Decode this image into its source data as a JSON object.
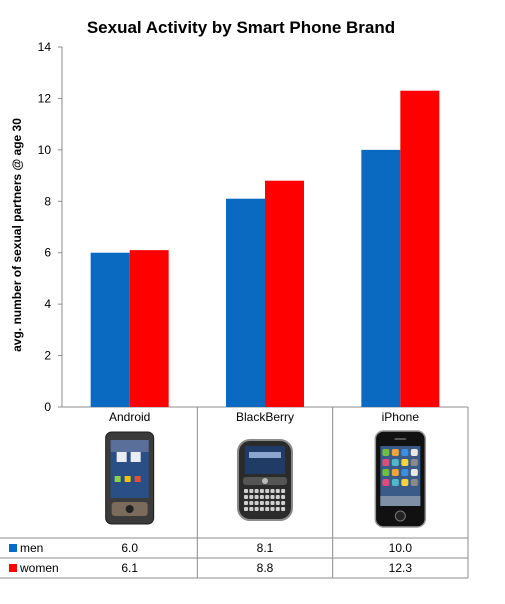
{
  "chart_data": {
    "type": "bar",
    "title": "Sexual Activity by Smart Phone Brand",
    "xlabel": "",
    "ylabel": "avg. number of sexual partners @ age 30",
    "ylim": [
      0,
      14
    ],
    "yticks": [
      0,
      2,
      4,
      6,
      8,
      10,
      12,
      14
    ],
    "grid": false,
    "legend": "data-table-below",
    "categories": [
      "Android",
      "BlackBerry",
      "iPhone"
    ],
    "series": [
      {
        "name": "men",
        "color": "#0a6ac2",
        "values": [
          6.0,
          8.1,
          10.0
        ],
        "labels": [
          "6.0",
          "8.1",
          "10.0"
        ]
      },
      {
        "name": "women",
        "color": "#ff0000",
        "values": [
          6.1,
          8.8,
          12.3
        ],
        "labels": [
          "6.1",
          "8.8",
          "12.3"
        ]
      }
    ],
    "category_icons": [
      "android-phone-icon",
      "blackberry-phone-icon",
      "iphone-icon"
    ]
  }
}
